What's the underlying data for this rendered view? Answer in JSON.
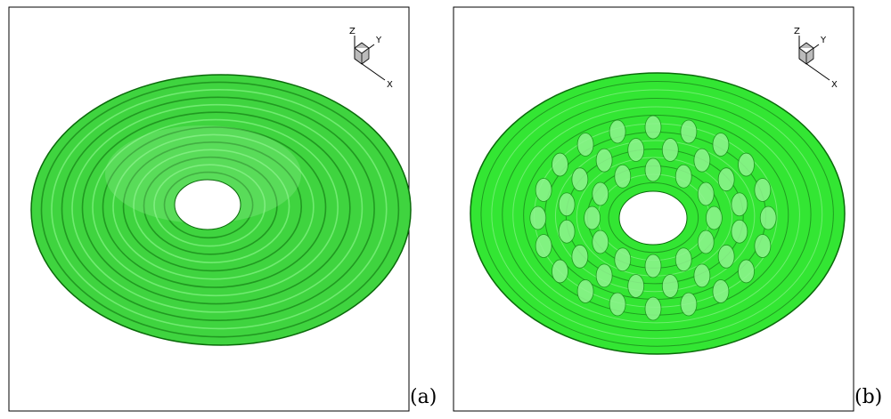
{
  "panels": [
    {
      "label": "(a)",
      "axes": {
        "z": "Z",
        "y": "Y",
        "x": "X"
      }
    },
    {
      "label": "(b)",
      "axes": {
        "z": "Z",
        "y": "Y",
        "x": "X"
      }
    }
  ]
}
